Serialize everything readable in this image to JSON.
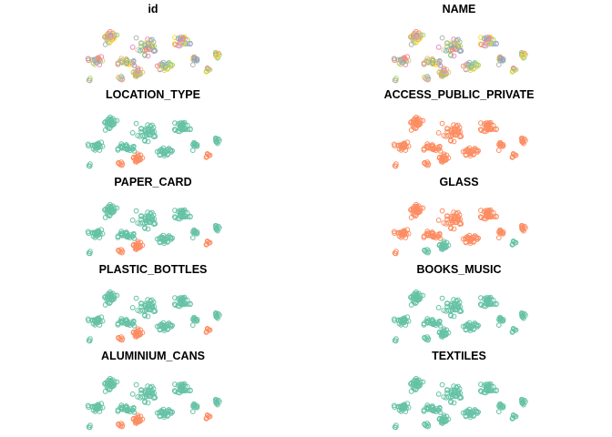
{
  "chart_data": {
    "type": "scatter",
    "layout": "small-multiples grid, 5 rows x 2 columns",
    "grid": false,
    "legend": "none",
    "marker": "open circle",
    "palette": {
      "categorical": [
        "#66c2a5",
        "#fc8d62",
        "#8da0cb",
        "#e78ac3",
        "#a6d854",
        "#ffd92f",
        "#e5c494",
        "#b3b3b3"
      ],
      "two_class": [
        "#66c2a5",
        "#fc8d62"
      ]
    },
    "panels": [
      {
        "title": "id",
        "coloring": "categorical",
        "highlight_region": "none"
      },
      {
        "title": "NAME",
        "coloring": "categorical",
        "highlight_region": "none"
      },
      {
        "title": "LOCATION_TYPE",
        "coloring": "two_class",
        "highlight_region": "south-central"
      },
      {
        "title": "ACCESS_PUBLIC_PRIVATE",
        "coloring": "two_class",
        "highlight_region": "all"
      },
      {
        "title": "PAPER_CARD",
        "coloring": "two_class",
        "highlight_region": "south-central"
      },
      {
        "title": "GLASS",
        "coloring": "two_class",
        "highlight_region": "all-except-south-central"
      },
      {
        "title": "PLASTIC_BOTTLES",
        "coloring": "two_class",
        "highlight_region": "south-central"
      },
      {
        "title": "BOOKS_MUSIC",
        "coloring": "two_class",
        "highlight_region": "none"
      },
      {
        "title": "ALUMINIUM_CANS",
        "coloring": "two_class",
        "highlight_region": "south-central"
      },
      {
        "title": "TEXTILES",
        "coloring": "two_class",
        "highlight_region": "none"
      }
    ]
  }
}
